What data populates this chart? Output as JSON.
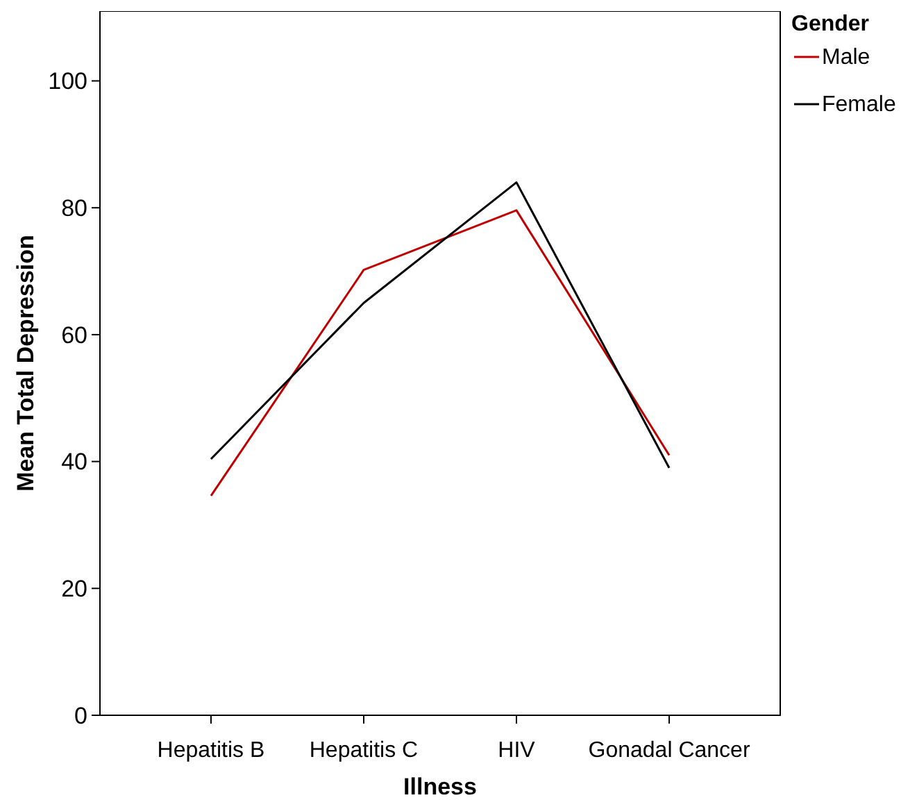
{
  "chart_data": {
    "type": "line",
    "xlabel": "Illness",
    "ylabel": "Mean Total Depression",
    "legend_title": "Gender",
    "categories": [
      "Hepatitis B",
      "Hepatitis C",
      "HIV",
      "Gonadal Cancer"
    ],
    "series": [
      {
        "name": "Male",
        "color": "#c00000",
        "values": [
          34.6,
          70.2,
          79.6,
          41.0
        ]
      },
      {
        "name": "Female",
        "color": "#000000",
        "values": [
          40.4,
          65.0,
          84.0,
          39.0
        ]
      }
    ],
    "ylim": [
      0,
      111
    ],
    "yticks": [
      0,
      20,
      40,
      60,
      80,
      100
    ],
    "grid": false,
    "legend": "right",
    "marker": "none",
    "line_style": "solid"
  }
}
